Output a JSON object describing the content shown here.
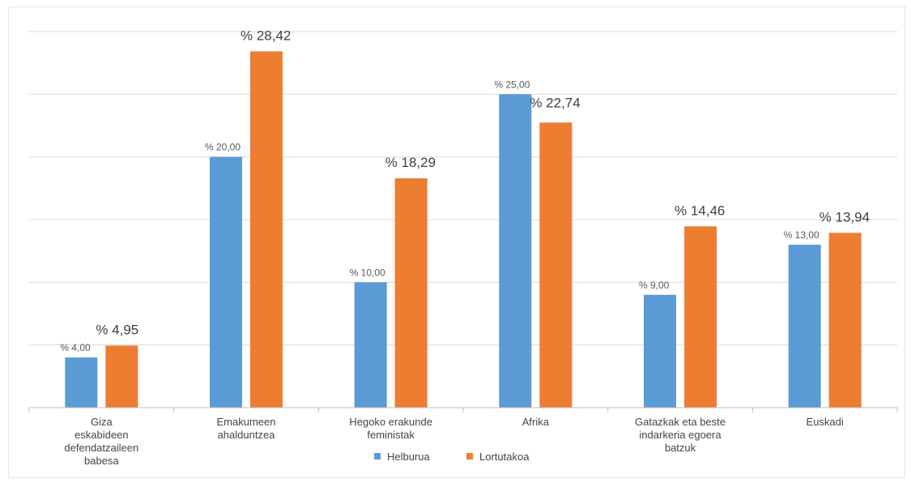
{
  "chart_data": {
    "type": "bar",
    "categories": [
      [
        "Giza",
        "eskabideen",
        "defendatzaileen",
        "babesa"
      ],
      [
        "Emakumeen",
        "ahalduntzea"
      ],
      [
        "Hegoko erakunde",
        "feministak"
      ],
      [
        "Afrika"
      ],
      [
        "Gatazkak eta beste",
        "indarkeria egoera",
        "batzuk"
      ],
      [
        "Euskadi"
      ]
    ],
    "series": [
      {
        "name": "Helburua",
        "color": "#5b9bd5",
        "values": [
          4.0,
          20.0,
          10.0,
          25.0,
          9.0,
          13.0
        ],
        "labels": [
          "% 4,00",
          "% 20,00",
          "% 10,00",
          "% 25,00",
          "% 9,00",
          "% 13,00"
        ]
      },
      {
        "name": "Lortutakoa",
        "color": "#ed7d31",
        "values": [
          4.95,
          28.42,
          18.29,
          22.74,
          14.46,
          13.94
        ],
        "labels": [
          "% 4,95",
          "% 28,42",
          "% 18,29",
          "% 22,74",
          "% 14,46",
          "% 13,94"
        ]
      }
    ],
    "ylim": [
      0,
      30
    ],
    "grid": true,
    "legend": "bottom",
    "title": "",
    "xlabel": "",
    "ylabel": ""
  }
}
